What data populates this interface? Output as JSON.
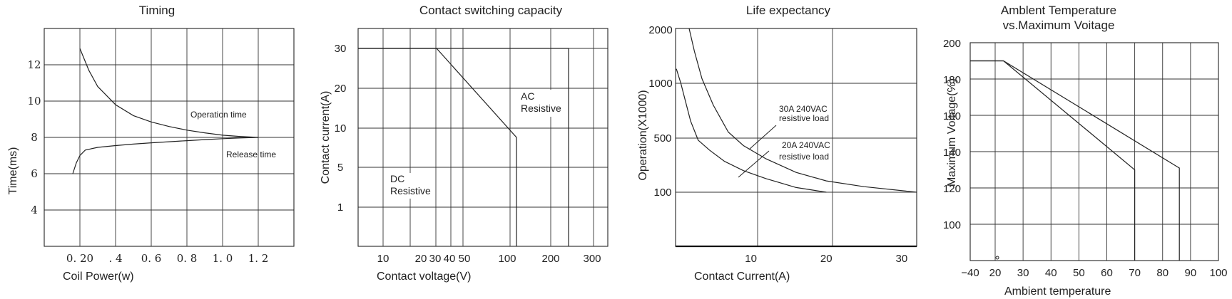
{
  "chart_data": [
    {
      "type": "line",
      "title": "Timing",
      "xlabel": "Coil Power(w)",
      "ylabel": "Time(ms)",
      "xlim": [
        0,
        1.4
      ],
      "ylim": [
        2,
        14
      ],
      "xticks": [
        {
          "v": 0.2,
          "label": "0. 20"
        },
        {
          "v": 0.4,
          "label": ". 4"
        },
        {
          "v": 0.6,
          "label": "0. 6"
        },
        {
          "v": 0.8,
          "label": "0. 8"
        },
        {
          "v": 1.0,
          "label": "1. 0"
        },
        {
          "v": 1.2,
          "label": "1. 2"
        }
      ],
      "yticks": [
        {
          "v": 4,
          "label": "4"
        },
        {
          "v": 6,
          "label": "6"
        },
        {
          "v": 8,
          "label": "8"
        },
        {
          "v": 10,
          "label": "10"
        },
        {
          "v": 12,
          "label": "12"
        }
      ],
      "annotations": [
        {
          "text": "Operation time",
          "x": 0.82,
          "y": 9.1
        },
        {
          "text": "Release time",
          "x": 1.02,
          "y": 6.9
        }
      ],
      "series": [
        {
          "key": "operation",
          "x": [
            0.2,
            0.25,
            0.3,
            0.4,
            0.5,
            0.6,
            0.7,
            0.8,
            0.9,
            1.0,
            1.1,
            1.2
          ],
          "y": [
            12.9,
            11.7,
            10.8,
            9.8,
            9.2,
            8.85,
            8.6,
            8.4,
            8.25,
            8.12,
            8.05,
            8.0
          ]
        },
        {
          "key": "release",
          "x": [
            0.16,
            0.18,
            0.2,
            0.23,
            0.3,
            0.4,
            0.5,
            0.6,
            0.7,
            0.8,
            0.9,
            1.0,
            1.1,
            1.2
          ],
          "y": [
            6.0,
            6.6,
            7.0,
            7.3,
            7.45,
            7.55,
            7.63,
            7.7,
            7.76,
            7.82,
            7.88,
            7.93,
            7.97,
            8.0
          ]
        }
      ]
    },
    {
      "type": "line",
      "title": "Contact switching capacity",
      "xlabel": "Contact voltage(V)",
      "ylabel": "Contact current(A)",
      "xticks": [
        "10",
        "20",
        "30",
        "40",
        "50",
        "100",
        "200",
        "300"
      ],
      "yticks": [
        "1",
        "5",
        "10",
        "20",
        "30"
      ],
      "annotations": [
        {
          "lines": [
            "AC",
            "Resistive"
          ]
        },
        {
          "lines": [
            "DC",
            "Resistive"
          ]
        }
      ],
      "series": [
        {
          "key": "ac",
          "x": [
            "",
            "240",
            "240"
          ],
          "y": [
            "30",
            "30",
            "0"
          ]
        },
        {
          "key": "dc",
          "x": [
            "",
            "30",
            "120",
            "120"
          ],
          "y": [
            "30",
            "30",
            "8",
            "0"
          ]
        }
      ]
    },
    {
      "type": "line",
      "title": "Life expectancy",
      "xlabel": "Contact Current(A)",
      "ylabel": "Operation(X1000)",
      "xlim": [
        0,
        32
      ],
      "xticks": [
        {
          "v": 10,
          "label": "10"
        },
        {
          "v": 20,
          "label": "20"
        },
        {
          "v": 30,
          "label": "30"
        }
      ],
      "yticks": [
        "100",
        "500",
        "1000",
        "2000"
      ],
      "annotations": [
        {
          "lines": [
            "30A 240VAC",
            "resistive load"
          ]
        },
        {
          "lines": [
            "20A 240VAC",
            "resistive load"
          ]
        }
      ],
      "series": [
        {
          "key": "30a",
          "x": [
            1.8,
            2.5,
            3.5,
            5,
            7,
            9,
            12,
            16,
            20,
            25,
            32
          ],
          "y": [
            2000,
            1500,
            1060,
            760,
            540,
            400,
            270,
            180,
            140,
            118,
            100
          ]
        },
        {
          "key": "20a",
          "x": [
            0.1,
            0.7,
            1.2,
            2,
            3,
            4.5,
            6.5,
            9,
            12,
            16,
            20
          ],
          "y": [
            1200,
            1000,
            830,
            620,
            470,
            350,
            250,
            190,
            150,
            115,
            100
          ]
        }
      ]
    },
    {
      "type": "line",
      "title": "Amblent Temperature",
      "subtitle": "vs.Maximum Voitage",
      "xlabel": "Ambient temperature",
      "ylabel": "Maximum Voitage(℅)",
      "xlim": [
        -40,
        100
      ],
      "ylim": [
        80,
        200
      ],
      "xticks": [
        {
          "v": -40,
          "label": "−40"
        },
        {
          "v": 20,
          "label": "20"
        },
        {
          "v": 30,
          "label": "30"
        },
        {
          "v": 40,
          "label": "40"
        },
        {
          "v": 50,
          "label": "50"
        },
        {
          "v": 60,
          "label": "60"
        },
        {
          "v": 70,
          "label": "70"
        },
        {
          "v": 80,
          "label": "80"
        },
        {
          "v": 90,
          "label": "90"
        },
        {
          "v": 100,
          "label": "100"
        }
      ],
      "yticks": [
        {
          "v": 100,
          "label": "100"
        },
        {
          "v": 120,
          "label": "120"
        },
        {
          "v": 140,
          "label": "140"
        },
        {
          "v": 160,
          "label": "160"
        },
        {
          "v": 180,
          "label": "180"
        },
        {
          "v": 200,
          "label": "200"
        }
      ],
      "series": [
        {
          "key": "line-85",
          "x": [
            -40,
            23,
            86,
            86
          ],
          "y": [
            190,
            190,
            131,
            80
          ]
        },
        {
          "key": "line-70",
          "x": [
            -40,
            23,
            70,
            70
          ],
          "y": [
            190,
            190,
            130,
            80
          ]
        }
      ]
    }
  ]
}
